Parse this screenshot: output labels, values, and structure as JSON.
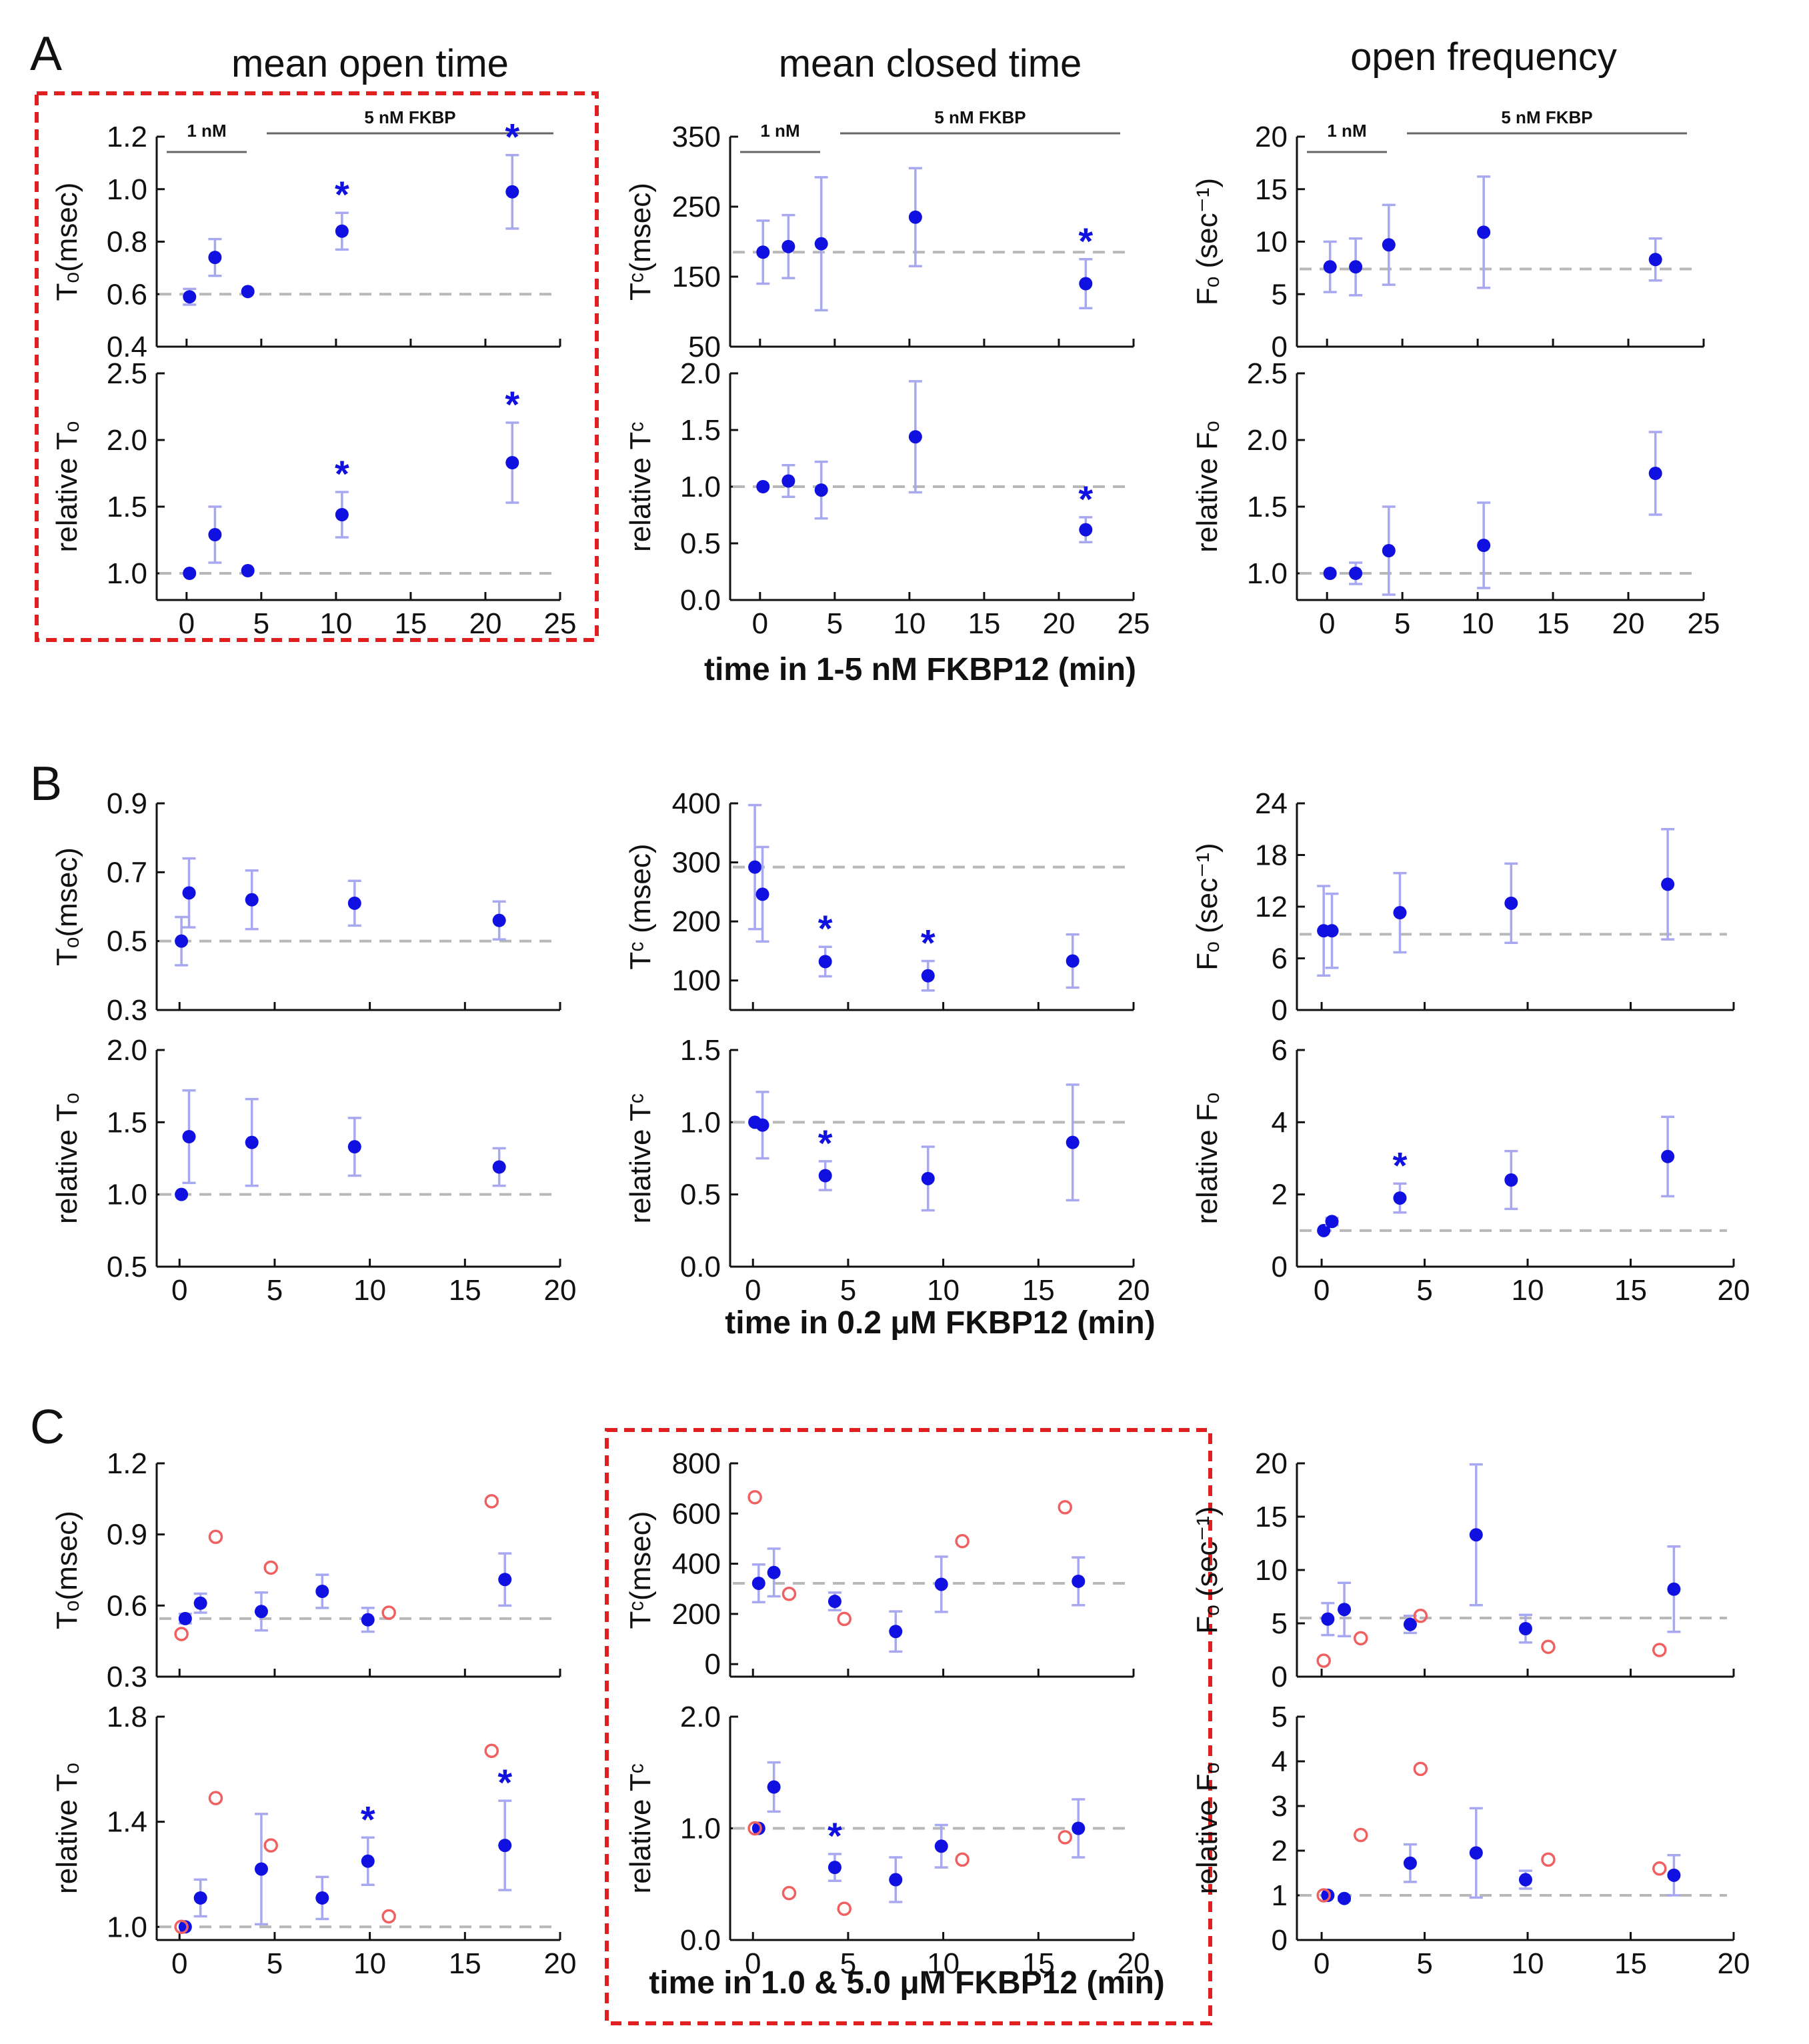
{
  "figure": {
    "panel_labels": [
      "A",
      "B",
      "C"
    ],
    "titles": [
      "mean open time",
      "mean closed time",
      "open frequency"
    ],
    "xlabels": [
      "time in 1-5 nM FKBP12 (min)",
      "time in 0.2 μM FKBP12 (min)",
      "time in 1.0 & 5.0 μM FKBP12 (min)"
    ],
    "annotations": {
      "low_conc": "1 nM",
      "high_conc": "5 nM FKBP"
    },
    "colors": {
      "point": "#1010e0",
      "error_bar": "#a8a8f0",
      "open_circle": "#f06060",
      "baseline": "#b8b8b8",
      "highlight_box": "#e02020"
    }
  },
  "chart_data": [
    {
      "id": "A-To",
      "type": "scatter",
      "ylabel": "Tₒ(msec)",
      "ylim": [
        0.4,
        1.2
      ],
      "yticks": [
        "0.4",
        "0.6",
        "0.8",
        "1.0",
        "1.2"
      ],
      "xlim": [
        -2,
        25
      ],
      "baseline": 0.6,
      "series": [
        {
          "name": "mean",
          "x": [
            0.2,
            1.9,
            4.1,
            10.4,
            21.8
          ],
          "y": [
            0.59,
            0.74,
            0.61,
            0.84,
            0.99
          ],
          "err": [
            0.03,
            0.07,
            0.0,
            0.07,
            0.14
          ]
        }
      ],
      "stars": [
        10.4,
        21.8
      ]
    },
    {
      "id": "A-relTo",
      "type": "scatter",
      "ylabel": "relative Tₒ",
      "ylim": [
        0.8,
        2.5
      ],
      "yticks": [
        "1.0",
        "1.5",
        "2.0",
        "2.5"
      ],
      "xlim": [
        -2,
        25
      ],
      "baseline": 1.0,
      "xticks": [
        "0",
        "5",
        "10",
        "15",
        "20",
        "25"
      ],
      "series": [
        {
          "name": "mean",
          "x": [
            0.2,
            1.9,
            4.1,
            10.4,
            21.8
          ],
          "y": [
            1.0,
            1.29,
            1.02,
            1.44,
            1.83
          ],
          "err": [
            0.0,
            0.21,
            0.0,
            0.17,
            0.3
          ]
        }
      ],
      "stars": [
        10.4,
        21.8
      ]
    },
    {
      "id": "A-Tc",
      "type": "scatter",
      "ylabel": "Tᶜ(msec)",
      "ylim": [
        50,
        350
      ],
      "yticks": [
        "50",
        "150",
        "250",
        "350"
      ],
      "xlim": [
        -2,
        25
      ],
      "baseline": 185,
      "series": [
        {
          "name": "mean",
          "x": [
            0.2,
            1.9,
            4.1,
            10.4,
            21.8
          ],
          "y": [
            185,
            193,
            197,
            235,
            140
          ],
          "err": [
            45,
            45,
            95,
            70,
            35
          ]
        }
      ],
      "stars": [
        21.8
      ]
    },
    {
      "id": "A-relTc",
      "type": "scatter",
      "ylabel": "relative Tᶜ",
      "ylim": [
        0.0,
        2.0
      ],
      "yticks": [
        "0.0",
        "0.5",
        "1.0",
        "1.5",
        "2.0"
      ],
      "xlim": [
        -2,
        25
      ],
      "baseline": 1.0,
      "xticks": [
        "0",
        "5",
        "10",
        "15",
        "20",
        "25"
      ],
      "series": [
        {
          "name": "mean",
          "x": [
            0.2,
            1.9,
            4.1,
            10.4,
            21.8
          ],
          "y": [
            1.0,
            1.05,
            0.97,
            1.44,
            0.62
          ],
          "err": [
            0.0,
            0.14,
            0.25,
            0.49,
            0.11
          ]
        }
      ],
      "stars": [
        21.8
      ]
    },
    {
      "id": "A-Fo",
      "type": "scatter",
      "ylabel": "Fₒ (sec⁻¹)",
      "ylim": [
        0,
        20
      ],
      "yticks": [
        "0",
        "5",
        "10",
        "15",
        "20"
      ],
      "xlim": [
        -2,
        25
      ],
      "baseline": 7.4,
      "series": [
        {
          "name": "mean",
          "x": [
            0.2,
            1.9,
            4.1,
            10.4,
            21.8
          ],
          "y": [
            7.6,
            7.6,
            9.7,
            10.9,
            8.3
          ],
          "err": [
            2.4,
            2.7,
            3.8,
            5.3,
            2.0
          ]
        }
      ],
      "stars": []
    },
    {
      "id": "A-relFo",
      "type": "scatter",
      "ylabel": "relative Fₒ",
      "ylim": [
        0.8,
        2.5
      ],
      "yticks": [
        "1.0",
        "1.5",
        "2.0",
        "2.5"
      ],
      "xlim": [
        -2,
        25
      ],
      "baseline": 1.0,
      "xticks": [
        "0",
        "5",
        "10",
        "15",
        "20",
        "25"
      ],
      "series": [
        {
          "name": "mean",
          "x": [
            0.2,
            1.9,
            4.1,
            10.4,
            21.8
          ],
          "y": [
            1.0,
            1.0,
            1.17,
            1.21,
            1.75
          ],
          "err": [
            0.0,
            0.08,
            0.33,
            0.32,
            0.31
          ]
        }
      ],
      "stars": []
    },
    {
      "id": "B-To",
      "type": "scatter",
      "ylabel": "Tₒ(msec)",
      "ylim": [
        0.3,
        0.9
      ],
      "yticks": [
        "0.3",
        "0.5",
        "0.7",
        "0.9"
      ],
      "xlim": [
        -1.2,
        20
      ],
      "baseline": 0.5,
      "series": [
        {
          "name": "mean",
          "x": [
            0.1,
            0.5,
            3.8,
            9.2,
            16.8
          ],
          "y": [
            0.5,
            0.64,
            0.62,
            0.61,
            0.56
          ],
          "err": [
            0.07,
            0.1,
            0.085,
            0.065,
            0.055
          ]
        }
      ],
      "stars": []
    },
    {
      "id": "B-relTo",
      "type": "scatter",
      "ylabel": "relative Tₒ",
      "ylim": [
        0.5,
        2.0
      ],
      "yticks": [
        "0.5",
        "1.0",
        "1.5",
        "2.0"
      ],
      "xlim": [
        -1.2,
        20
      ],
      "baseline": 1.0,
      "xticks": [
        "0",
        "5",
        "10",
        "15",
        "20"
      ],
      "series": [
        {
          "name": "mean",
          "x": [
            0.1,
            0.5,
            3.8,
            9.2,
            16.8
          ],
          "y": [
            1.0,
            1.4,
            1.36,
            1.33,
            1.19
          ],
          "err": [
            0.0,
            0.32,
            0.3,
            0.2,
            0.13
          ]
        }
      ],
      "stars": []
    },
    {
      "id": "B-Tc",
      "type": "scatter",
      "ylabel": "Tᶜ (msec)",
      "ylim": [
        50,
        400
      ],
      "yticks": [
        "100",
        "200",
        "300",
        "400"
      ],
      "xlim": [
        -1.2,
        20
      ],
      "baseline": 292,
      "series": [
        {
          "name": "mean",
          "x": [
            0.1,
            0.5,
            3.8,
            9.2,
            16.8
          ],
          "y": [
            292,
            246,
            132,
            108,
            133
          ],
          "err": [
            105,
            80,
            25,
            25,
            45
          ]
        }
      ],
      "stars": [
        3.8,
        9.2
      ]
    },
    {
      "id": "B-relTc",
      "type": "scatter",
      "ylabel": "relative Tᶜ",
      "ylim": [
        0.0,
        1.5
      ],
      "yticks": [
        "0.0",
        "0.5",
        "1.0",
        "1.5"
      ],
      "xlim": [
        -1.2,
        20
      ],
      "baseline": 1.0,
      "xticks": [
        "0",
        "5",
        "10",
        "15",
        "20"
      ],
      "series": [
        {
          "name": "mean",
          "x": [
            0.1,
            0.5,
            3.8,
            9.2,
            16.8
          ],
          "y": [
            1.0,
            0.98,
            0.63,
            0.61,
            0.86
          ],
          "err": [
            0.0,
            0.23,
            0.1,
            0.22,
            0.4
          ]
        }
      ],
      "stars": [
        3.8
      ]
    },
    {
      "id": "B-Fo",
      "type": "scatter",
      "ylabel": "Fₒ (sec⁻¹)",
      "ylim": [
        0,
        24
      ],
      "yticks": [
        "0",
        "6",
        "12",
        "18",
        "24"
      ],
      "xlim": [
        -1.2,
        20
      ],
      "baseline": 8.8,
      "series": [
        {
          "name": "mean",
          "x": [
            0.1,
            0.5,
            3.8,
            9.2,
            16.8
          ],
          "y": [
            9.2,
            9.2,
            11.3,
            12.4,
            14.6
          ],
          "err": [
            5.2,
            4.3,
            4.6,
            4.6,
            6.4
          ]
        }
      ],
      "stars": []
    },
    {
      "id": "B-relFo",
      "type": "scatter",
      "ylabel": "relative Fₒ",
      "ylim": [
        0,
        6
      ],
      "yticks": [
        "0",
        "2",
        "4",
        "6"
      ],
      "xlim": [
        -1.2,
        20
      ],
      "baseline": 1.0,
      "xticks": [
        "0",
        "5",
        "10",
        "15",
        "20"
      ],
      "series": [
        {
          "name": "mean",
          "x": [
            0.1,
            0.5,
            3.8,
            9.2,
            16.8
          ],
          "y": [
            1.0,
            1.25,
            1.9,
            2.4,
            3.05
          ],
          "err": [
            0.0,
            0.1,
            0.4,
            0.8,
            1.1
          ]
        }
      ],
      "stars": [
        3.8
      ]
    },
    {
      "id": "C-To",
      "type": "scatter",
      "ylabel": "Tₒ(msec)",
      "ylim": [
        0.3,
        1.2
      ],
      "yticks": [
        "0.3",
        "0.6",
        "0.9",
        "1.2"
      ],
      "xlim": [
        -1.2,
        20
      ],
      "baseline": 0.545,
      "series": [
        {
          "name": "mean",
          "x": [
            0.3,
            1.1,
            4.3,
            7.5,
            9.9,
            17.1
          ],
          "y": [
            0.545,
            0.61,
            0.575,
            0.66,
            0.54,
            0.71
          ],
          "err": [
            0.02,
            0.04,
            0.08,
            0.07,
            0.05,
            0.11
          ]
        },
        {
          "name": "open",
          "x": [
            0.1,
            1.9,
            4.8,
            11.0,
            16.4
          ],
          "y": [
            0.48,
            0.89,
            0.76,
            0.57,
            1.04
          ]
        }
      ],
      "stars": []
    },
    {
      "id": "C-relTo",
      "type": "scatter",
      "ylabel": "relative Tₒ",
      "ylim": [
        0.95,
        1.8
      ],
      "yticks": [
        "1.0",
        "1.4",
        "1.8"
      ],
      "xlim": [
        -1.2,
        20
      ],
      "baseline": 1.0,
      "xticks": [
        "0",
        "5",
        "10",
        "15",
        "20"
      ],
      "series": [
        {
          "name": "mean",
          "x": [
            0.3,
            1.1,
            4.3,
            7.5,
            9.9,
            17.1
          ],
          "y": [
            1.0,
            1.11,
            1.22,
            1.11,
            1.25,
            1.31
          ],
          "err": [
            0.0,
            0.07,
            0.21,
            0.08,
            0.09,
            0.17
          ]
        },
        {
          "name": "open",
          "x": [
            0.1,
            1.9,
            4.8,
            11.0,
            16.4
          ],
          "y": [
            1.0,
            1.49,
            1.31,
            1.04,
            1.67
          ]
        }
      ],
      "stars": [
        9.9,
        17.1
      ]
    },
    {
      "id": "C-Tc",
      "type": "scatter",
      "ylabel": "Tᶜ(msec)",
      "ylim": [
        -50,
        800
      ],
      "yticks": [
        "0",
        "200",
        "400",
        "600",
        "800"
      ],
      "xlim": [
        -1.2,
        20
      ],
      "baseline": 322,
      "series": [
        {
          "name": "mean",
          "x": [
            0.3,
            1.1,
            4.3,
            7.5,
            9.9,
            17.1
          ],
          "y": [
            322,
            365,
            250,
            130,
            318,
            330
          ],
          "err": [
            75,
            95,
            35,
            80,
            110,
            95
          ]
        },
        {
          "name": "open",
          "x": [
            0.1,
            1.9,
            4.8,
            11.0,
            16.4
          ],
          "y": [
            665,
            280,
            180,
            490,
            625
          ]
        }
      ],
      "stars": []
    },
    {
      "id": "C-relTc",
      "type": "scatter",
      "ylabel": "relative Tᶜ",
      "ylim": [
        0.0,
        2.0
      ],
      "yticks": [
        "0.0",
        "1.0",
        "2.0"
      ],
      "xlim": [
        -1.2,
        20
      ],
      "baseline": 1.0,
      "xticks": [
        "0",
        "5",
        "10",
        "15",
        "20"
      ],
      "series": [
        {
          "name": "mean",
          "x": [
            0.3,
            1.1,
            4.3,
            7.5,
            9.9,
            17.1
          ],
          "y": [
            1.0,
            1.37,
            0.65,
            0.54,
            0.84,
            1.0
          ],
          "err": [
            0.0,
            0.22,
            0.12,
            0.2,
            0.19,
            0.26
          ]
        },
        {
          "name": "open",
          "x": [
            0.1,
            1.9,
            4.8,
            11.0,
            16.4
          ],
          "y": [
            1.0,
            0.42,
            0.28,
            0.72,
            0.92
          ]
        }
      ],
      "stars": [
        4.3
      ]
    },
    {
      "id": "C-Fo",
      "type": "scatter",
      "ylabel": "Fₒ (sec⁻¹)",
      "ylim": [
        0,
        20
      ],
      "yticks": [
        "0",
        "5",
        "10",
        "15",
        "20"
      ],
      "xlim": [
        -1.2,
        20
      ],
      "baseline": 5.5,
      "series": [
        {
          "name": "mean",
          "x": [
            0.3,
            1.1,
            4.3,
            7.5,
            9.9,
            17.1
          ],
          "y": [
            5.4,
            6.3,
            4.9,
            13.3,
            4.5,
            8.2
          ],
          "err": [
            1.5,
            2.5,
            0.8,
            6.6,
            1.3,
            4.0
          ]
        },
        {
          "name": "open",
          "x": [
            0.1,
            1.9,
            4.8,
            11.0,
            16.4
          ],
          "y": [
            1.5,
            3.6,
            5.7,
            2.8,
            2.5
          ]
        }
      ],
      "stars": []
    },
    {
      "id": "C-relFo",
      "type": "scatter",
      "ylabel": "relative Fₒ",
      "ylim": [
        0,
        5
      ],
      "yticks": [
        "0",
        "1",
        "2",
        "3",
        "4",
        "5"
      ],
      "xlim": [
        -1.2,
        20
      ],
      "baseline": 1.0,
      "xticks": [
        "0",
        "5",
        "10",
        "15",
        "20"
      ],
      "series": [
        {
          "name": "mean",
          "x": [
            0.3,
            1.1,
            4.3,
            7.5,
            9.9,
            17.1
          ],
          "y": [
            1.0,
            0.93,
            1.72,
            1.95,
            1.35,
            1.45
          ],
          "err": [
            0.0,
            0.05,
            0.42,
            1.0,
            0.2,
            0.45
          ]
        },
        {
          "name": "open",
          "x": [
            0.1,
            1.9,
            4.8,
            11.0,
            16.4
          ],
          "y": [
            1.0,
            2.35,
            3.83,
            1.8,
            1.6
          ]
        }
      ],
      "stars": []
    }
  ]
}
